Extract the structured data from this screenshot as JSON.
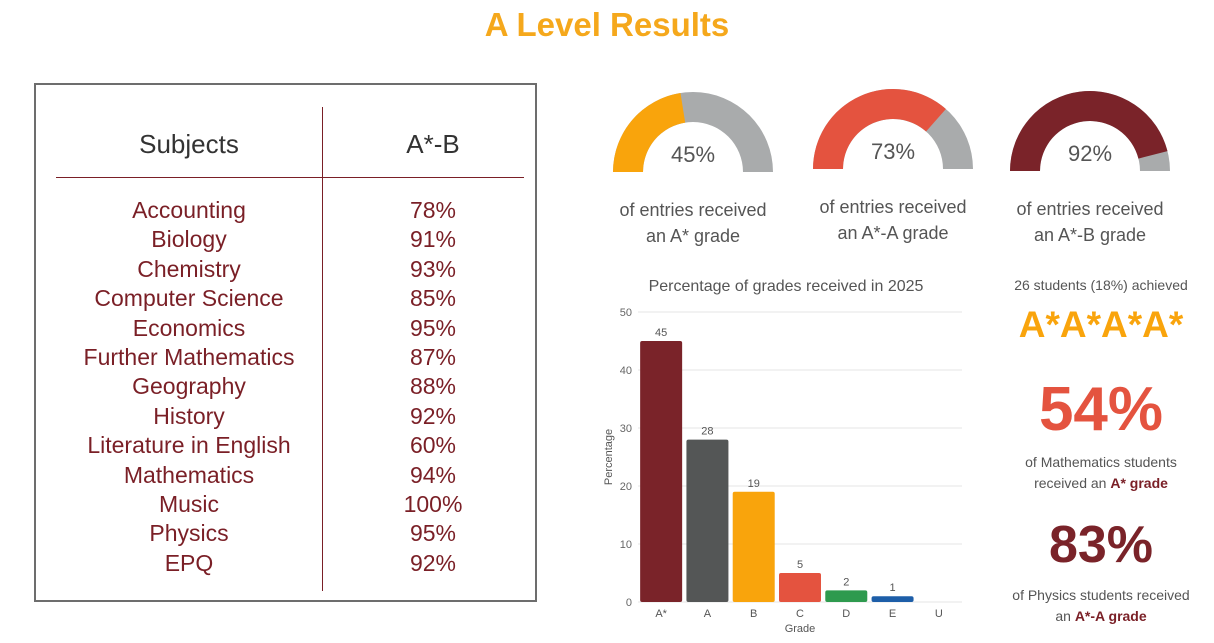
{
  "title": "A Level Results",
  "table": {
    "header_subject": "Subjects",
    "header_value": "A*-B",
    "rows": [
      {
        "subject": "Accounting",
        "value": "78%"
      },
      {
        "subject": "Biology",
        "value": "91%"
      },
      {
        "subject": "Chemistry",
        "value": "93%"
      },
      {
        "subject": "Computer Science",
        "value": "85%"
      },
      {
        "subject": "Economics",
        "value": "95%"
      },
      {
        "subject": "Further Mathematics",
        "value": "87%"
      },
      {
        "subject": "Geography",
        "value": "88%"
      },
      {
        "subject": "History",
        "value": "92%"
      },
      {
        "subject": "Literature in English",
        "value": "60%"
      },
      {
        "subject": "Mathematics",
        "value": "94%"
      },
      {
        "subject": "Music",
        "value": "100%"
      },
      {
        "subject": "Physics",
        "value": "95%"
      },
      {
        "subject": "EPQ",
        "value": "92%"
      }
    ]
  },
  "gauges": [
    {
      "value": 45,
      "label": "45%",
      "caption_line1": "of entries received",
      "caption_line2": "an A* grade",
      "color": "#f9a40c"
    },
    {
      "value": 73,
      "label": "73%",
      "caption_line1": "of entries received",
      "caption_line2": "an A*-A grade",
      "color": "#e4533f"
    },
    {
      "value": 92,
      "label": "92%",
      "caption_line1": "of entries received",
      "caption_line2": "an A*-B grade",
      "color": "#7a2329"
    }
  ],
  "chart_data": {
    "type": "bar",
    "title": "Percentage of grades received in 2025",
    "xlabel": "Grade",
    "ylabel": "Percentage",
    "categories": [
      "A*",
      "A",
      "B",
      "C",
      "D",
      "E",
      "U"
    ],
    "values": [
      45,
      28,
      19,
      5,
      2,
      1,
      0
    ],
    "data_labels": [
      "45",
      "28",
      "19",
      "5",
      "2",
      "1",
      ""
    ],
    "colors": [
      "#7a2329",
      "#545656",
      "#f9a40c",
      "#e4533f",
      "#2e9a4e",
      "#1d5ea8",
      "#999999"
    ],
    "ylim": [
      0,
      50
    ],
    "yticks": [
      "0",
      "10",
      "20",
      "30",
      "40",
      "50"
    ],
    "grid": true
  },
  "stats": {
    "students_line": "26 students (18%) achieved",
    "grade_combo": "A*A*A*A*",
    "maths_pct": "54%",
    "maths_line1": "of Mathematics students",
    "maths_line2_pre": "received an ",
    "maths_line2_bold": "A* grade",
    "physics_pct": "83%",
    "physics_line1": "of Physics students received",
    "physics_line2_pre": "an ",
    "physics_line2_bold": "A*-A grade",
    "accent_orange": "#f9a40c",
    "accent_red": "#e4533f",
    "accent_maroon": "#7a2329"
  }
}
